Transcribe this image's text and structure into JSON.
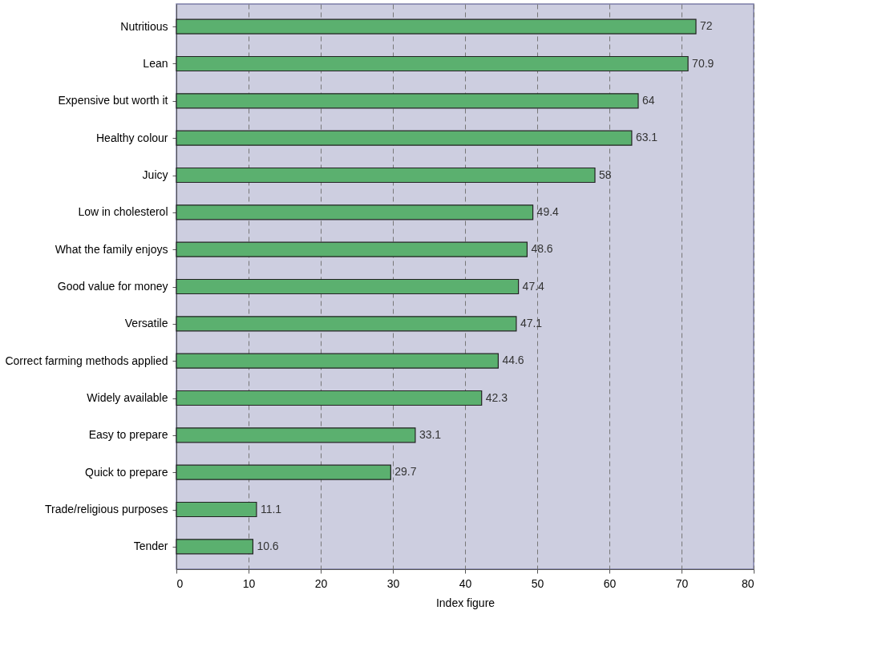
{
  "chart_data": {
    "type": "bar",
    "orientation": "horizontal",
    "xlabel": "Index figure",
    "categories": [
      "Nutritious",
      "Lean",
      "Expensive but worth it",
      "Healthy colour",
      "Juicy",
      "Low in cholesterol",
      "What the family enjoys",
      "Good value for money",
      "Versatile",
      "Correct farming methods applied",
      "Widely available",
      "Easy to prepare",
      "Quick to prepare",
      "Trade/religious purposes",
      "Tender"
    ],
    "values": [
      72,
      70.9,
      64,
      63.1,
      58,
      49.4,
      48.6,
      47.4,
      47.1,
      44.6,
      42.3,
      33.1,
      29.7,
      11.1,
      10.6
    ],
    "color": "#5bb06f",
    "xlim": [
      0,
      80
    ],
    "xticks": [
      0,
      10,
      20,
      30,
      40,
      50,
      60,
      70,
      80
    ],
    "grid": "x",
    "data_labels": true
  }
}
